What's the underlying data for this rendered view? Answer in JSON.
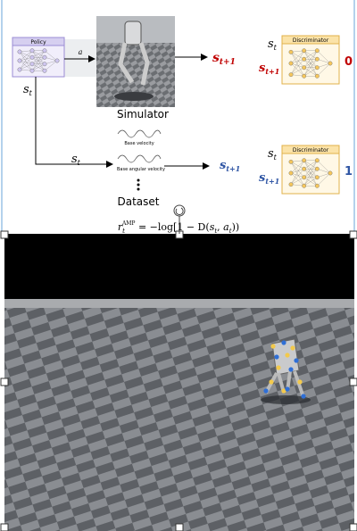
{
  "diagram": {
    "policy": "Policy",
    "action": "a",
    "sim_state": {
      "base": "s",
      "sub": "t"
    },
    "sim_next": {
      "base": "s",
      "sub": "t+1"
    },
    "simulator": "Simulator",
    "data_state": {
      "base": "s",
      "sub": "t"
    },
    "data_next": {
      "base": "s",
      "sub": "t+1"
    },
    "base_velocity": "Base velocity",
    "base_angular_velocity": "Base angular velocity",
    "dataset": "Dataset",
    "disc_top": {
      "title": "Discriminator",
      "state": {
        "base": "s",
        "sub": "t"
      },
      "next": {
        "base": "s",
        "sub": "t+1"
      },
      "output": "0"
    },
    "disc_bottom": {
      "title": "Discriminator",
      "state": {
        "base": "s",
        "sub": "t"
      },
      "next": {
        "base": "s",
        "sub": "t+1"
      },
      "output": "1"
    },
    "formula": {
      "lhs": "r",
      "lhs_sub": "t",
      "lhs_sup": "AMP",
      "rhs": " = −log[1 − D(",
      "s": "s",
      "s_sub": "t",
      "comma": ", ",
      "a": "a",
      "a_sub": "t",
      "close": "))"
    }
  }
}
